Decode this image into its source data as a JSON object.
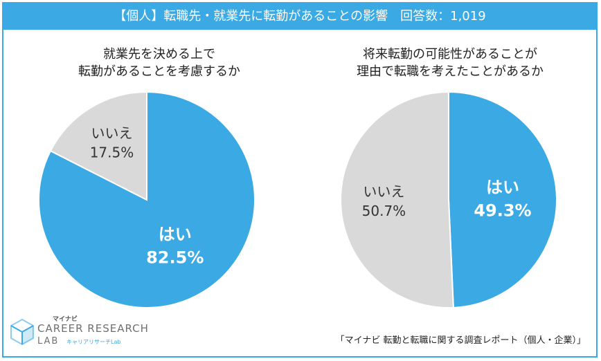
{
  "header": {
    "title": "【個人】転職先・就業先に転勤があることの影響　回答数：1,019"
  },
  "colors": {
    "yes": "#3aa9e4",
    "no": "#d9d9d9",
    "yes_text": "#ffffff",
    "no_text": "#333333"
  },
  "chart_data": [
    {
      "type": "pie",
      "title_lines": [
        "就業先を決める上で",
        "転勤があることを考慮するか"
      ],
      "slices": [
        {
          "label": "はい",
          "value": 82.5,
          "display": "82.5%"
        },
        {
          "label": "いいえ",
          "value": 17.5,
          "display": "17.5%"
        }
      ]
    },
    {
      "type": "pie",
      "title_lines": [
        "将来転勤の可能性があることが",
        "理由で転職を考えたことがあるか"
      ],
      "slices": [
        {
          "label": "はい",
          "value": 49.3,
          "display": "49.3%"
        },
        {
          "label": "いいえ",
          "value": 50.7,
          "display": "50.7%"
        }
      ]
    }
  ],
  "logo": {
    "kana": "マイナビ",
    "line1": "CAREER RESEARCH",
    "line2": "LAB",
    "sub": "キャリアリサーチLab"
  },
  "source": "「マイナビ  転勤と転職に関する調査レポート（個人・企業）」"
}
